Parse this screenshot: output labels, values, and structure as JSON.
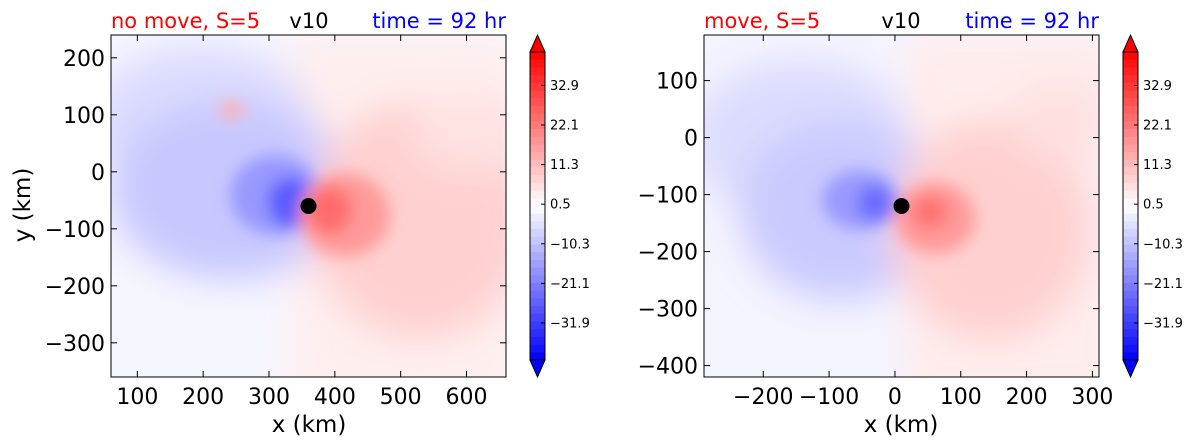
{
  "chart_data": [
    {
      "type": "heatmap",
      "title_left": "no move, S=5",
      "title_center": "v10",
      "title_right": "time = 92 hr",
      "title_left_color": "#ff0000",
      "title_center_color": "#000000",
      "title_right_color": "#0000ff",
      "xlabel": "x (km)",
      "ylabel": "y (km)",
      "xlim": [
        60,
        660
      ],
      "ylim": [
        -360,
        240
      ],
      "xticks": [
        100,
        200,
        300,
        400,
        500,
        600
      ],
      "yticks": [
        200,
        100,
        0,
        -100,
        -200,
        -300
      ],
      "xtick_labels": [
        "100",
        "200",
        "300",
        "400",
        "500",
        "600"
      ],
      "ytick_labels": [
        "200",
        "100",
        "0",
        "−100",
        "−200",
        "−300"
      ],
      "center_marker": [
        360,
        -60
      ],
      "colorbar": {
        "min": -42,
        "max": 42,
        "extend": "both",
        "ticks": [
          32.9,
          22.1,
          11.3,
          0.5,
          -10.3,
          -21.1,
          -31.9
        ],
        "tick_labels": [
          "32.9",
          "22.1",
          "11.3",
          "0.5",
          "−10.3",
          "−21.1",
          "−31.9"
        ],
        "cmap": "bwr"
      }
    },
    {
      "type": "heatmap",
      "title_left": "move, S=5",
      "title_center": "v10",
      "title_right": "time = 92 hr",
      "title_left_color": "#ff0000",
      "title_center_color": "#000000",
      "title_right_color": "#0000ff",
      "xlabel": "x (km)",
      "ylabel": "",
      "xlim": [
        -290,
        310
      ],
      "ylim": [
        -420,
        180
      ],
      "xticks": [
        -200,
        -100,
        0,
        100,
        200,
        300
      ],
      "yticks": [
        100,
        0,
        -100,
        -200,
        -300,
        -400
      ],
      "xtick_labels": [
        "−200",
        "−100",
        "0",
        "100",
        "200",
        "300"
      ],
      "ytick_labels": [
        "100",
        "0",
        "−100",
        "−200",
        "−300",
        "−400"
      ],
      "center_marker": [
        10,
        -120
      ],
      "colorbar": {
        "min": -42,
        "max": 42,
        "extend": "both",
        "ticks": [
          32.9,
          22.1,
          11.3,
          0.5,
          -10.3,
          -21.1,
          -31.9
        ],
        "tick_labels": [
          "32.9",
          "22.1",
          "11.3",
          "0.5",
          "−10.3",
          "−21.1",
          "−31.9"
        ],
        "cmap": "bwr"
      }
    }
  ]
}
